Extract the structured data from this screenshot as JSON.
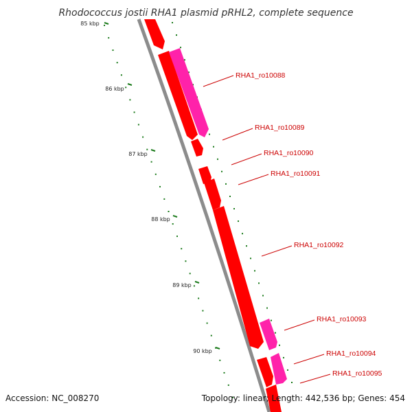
{
  "title": "Rhodococcus jostii RHA1 plasmid pRHL2, complete sequence",
  "footer": {
    "accession": "Accession: NC_008270",
    "summary": "Topology: linear; Length: 442,536 bp; Genes: 454"
  },
  "colors": {
    "backbone": "#8c8c8c",
    "gene_red": "#ff0000",
    "gene_pink": "#ff22aa",
    "ticks": "#1a7a1a",
    "label": "#cc0000"
  },
  "kbp_ticks": [
    "85 kbp",
    "86 kbp",
    "87 kbp",
    "88 kbp",
    "89 kbp",
    "90 kbp"
  ],
  "genes": [
    {
      "label": "RHA1_ro10088"
    },
    {
      "label": "RHA1_ro10089"
    },
    {
      "label": "RHA1_ro10090"
    },
    {
      "label": "RHA1_ro10091"
    },
    {
      "label": "RHA1_ro10092"
    },
    {
      "label": "RHA1_ro10093"
    },
    {
      "label": "RHA1_ro10094"
    },
    {
      "label": "RHA1_ro10095"
    }
  ]
}
